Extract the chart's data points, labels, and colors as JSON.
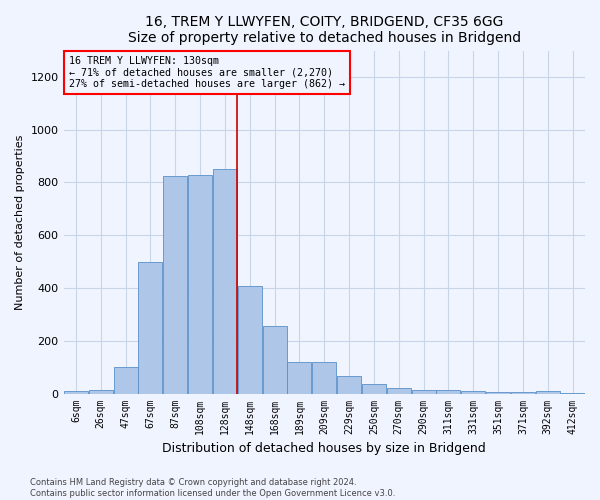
{
  "title": "16, TREM Y LLWYFEN, COITY, BRIDGEND, CF35 6GG",
  "subtitle": "Size of property relative to detached houses in Bridgend",
  "xlabel": "Distribution of detached houses by size in Bridgend",
  "ylabel": "Number of detached properties",
  "footer_line1": "Contains HM Land Registry data © Crown copyright and database right 2024.",
  "footer_line2": "Contains public sector information licensed under the Open Government Licence v3.0.",
  "categories": [
    "6sqm",
    "26sqm",
    "47sqm",
    "67sqm",
    "87sqm",
    "108sqm",
    "128sqm",
    "148sqm",
    "168sqm",
    "189sqm",
    "209sqm",
    "229sqm",
    "250sqm",
    "270sqm",
    "290sqm",
    "311sqm",
    "331sqm",
    "351sqm",
    "371sqm",
    "392sqm",
    "412sqm"
  ],
  "values": [
    8,
    12,
    100,
    500,
    825,
    830,
    850,
    408,
    255,
    120,
    120,
    68,
    35,
    22,
    15,
    15,
    10,
    5,
    5,
    10,
    3
  ],
  "bar_color": "#aec6e8",
  "bar_edge_color": "#5a8fc8",
  "vline_color": "#cc0000",
  "annotation_title": "16 TREM Y LLWYFEN: 130sqm",
  "annotation_line1": "← 71% of detached houses are smaller (2,270)",
  "annotation_line2": "27% of semi-detached houses are larger (862) →",
  "annotation_box_color": "red",
  "ylim": [
    0,
    1300
  ],
  "yticks": [
    0,
    200,
    400,
    600,
    800,
    1000,
    1200
  ],
  "bg_color": "#f0f4ff",
  "grid_color": "#c8d4e8"
}
